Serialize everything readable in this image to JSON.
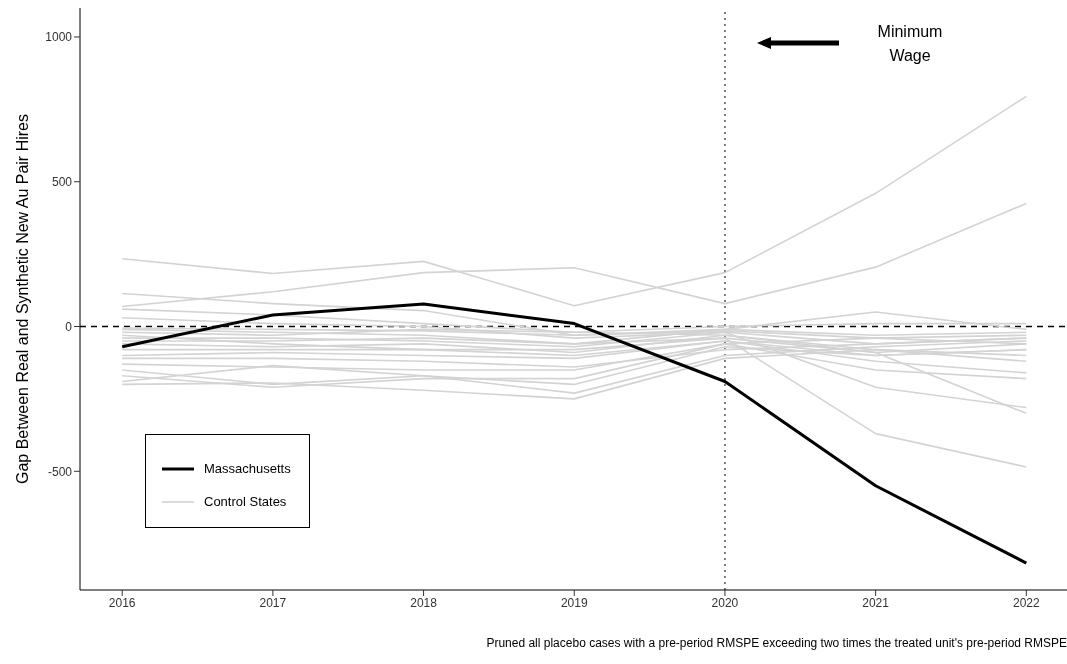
{
  "chart_data": {
    "type": "line",
    "ylabel": "Gap Between Real and Synthetic New Au Pair Hires",
    "x": [
      2016,
      2017,
      2018,
      2019,
      2020,
      2021,
      2022
    ],
    "xlim": [
      2015.72,
      2022.27
    ],
    "xticks": [
      2016,
      2017,
      2018,
      2019,
      2020,
      2021,
      2022
    ],
    "ylim": [
      -910,
      1100
    ],
    "yticks": [
      -500,
      0,
      500,
      1000
    ],
    "grid": false,
    "legend": "bottom left",
    "marker": "none",
    "line_style": "solid",
    "series": [
      {
        "name": "Control States",
        "color": "#d3d3d3",
        "values": [
          234,
          183,
          225,
          72,
          186,
          460,
          795
        ]
      },
      {
        "color": "#d3d3d3",
        "values": [
          69,
          120,
          186,
          203,
          79,
          205,
          425
        ]
      },
      {
        "color": "#d3d3d3",
        "values": [
          114,
          79,
          55,
          -30,
          -10,
          50,
          -10
        ]
      },
      {
        "color": "#d3d3d3",
        "values": [
          60,
          40,
          10,
          -20,
          -30,
          -90,
          -300
        ]
      },
      {
        "color": "#d3d3d3",
        "values": [
          30,
          10,
          0,
          -40,
          -20,
          -210,
          -280
        ]
      },
      {
        "color": "#d3d3d3",
        "values": [
          -10,
          -20,
          -30,
          -60,
          -40,
          -370,
          -485
        ]
      },
      {
        "color": "#d3d3d3",
        "values": [
          -20,
          -30,
          -10,
          -20,
          0,
          10,
          10
        ]
      },
      {
        "color": "#d3d3d3",
        "values": [
          -40,
          -40,
          -50,
          -70,
          -20,
          -60,
          -40
        ]
      },
      {
        "color": "#d3d3d3",
        "values": [
          -60,
          -70,
          -60,
          -90,
          -30,
          -80,
          -100
        ]
      },
      {
        "color": "#d3d3d3",
        "values": [
          -80,
          -80,
          -80,
          -80,
          -40,
          -90,
          -60
        ]
      },
      {
        "color": "#d3d3d3",
        "values": [
          -100,
          -90,
          -100,
          -110,
          -50,
          -120,
          -160
        ]
      },
      {
        "color": "#d3d3d3",
        "values": [
          -130,
          -140,
          -150,
          -150,
          -60,
          -150,
          -180
        ]
      },
      {
        "color": "#d3d3d3",
        "values": [
          -150,
          -200,
          -170,
          -200,
          -70,
          -100,
          -80
        ]
      },
      {
        "color": "#d3d3d3",
        "values": [
          -190,
          -135,
          -170,
          -230,
          -100,
          -70,
          -50
        ]
      },
      {
        "color": "#d3d3d3",
        "values": [
          -200,
          -195,
          -220,
          -250,
          -110,
          -80,
          -120
        ]
      },
      {
        "color": "#d3d3d3",
        "values": [
          -170,
          -210,
          -180,
          -180,
          -60,
          -40,
          -30
        ]
      },
      {
        "color": "#d3d3d3",
        "values": [
          -50,
          -50,
          -40,
          -60,
          -10,
          -30,
          -20
        ]
      },
      {
        "color": "#d3d3d3",
        "values": [
          -30,
          -60,
          -80,
          -100,
          -50,
          -100,
          -80
        ]
      },
      {
        "color": "#d3d3d3",
        "values": [
          -110,
          -110,
          -120,
          -140,
          -80,
          -60,
          -40
        ]
      },
      {
        "color": "#d3d3d3",
        "values": [
          -5,
          -10,
          -15,
          -30,
          -15,
          -40,
          -60
        ]
      },
      {
        "name": "Massachusetts",
        "color": "#000000",
        "values": [
          -70,
          40,
          78,
          10,
          -190,
          -550,
          -817
        ]
      }
    ],
    "ref_lines": [
      {
        "axis": "y",
        "value": 0,
        "line_style": "dashed",
        "color": "#000000"
      },
      {
        "axis": "x",
        "value": 2020,
        "line_style": "dotted",
        "color": "#555555"
      }
    ],
    "annotations": [
      "Minimum Wage",
      "Pruned all placebo cases with a pre-period RMSPE exceeding two times the treated unit's pre-period RMSPE"
    ]
  }
}
